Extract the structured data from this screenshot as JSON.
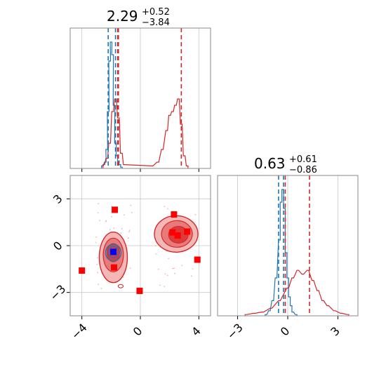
{
  "colors": {
    "blue": "#1f77b4",
    "red": "#d62728",
    "marker_red": "#ff0000",
    "marker_blue": "#0000ff"
  },
  "chart_data": [
    {
      "type": "histogram",
      "panel": "top-left",
      "title_value": "2.29",
      "title_upper": "+0.52",
      "title_lower": "−3.84",
      "xlim": [
        -4.8,
        4.8
      ],
      "xticks": [
        -4,
        0,
        4
      ],
      "grid": true,
      "vlines": [
        {
          "x": -2.2,
          "color": "blue",
          "style": "dashed"
        },
        {
          "x": -1.7,
          "color": "blue",
          "style": "dashed"
        },
        {
          "x": -1.55,
          "color": "red",
          "style": "dashed"
        },
        {
          "x": -1.5,
          "color": "red",
          "style": "dashed"
        },
        {
          "x": 2.8,
          "color": "red",
          "style": "dashed"
        }
      ],
      "series": [
        {
          "color": "blue",
          "x": [
            -2.6,
            -2.4,
            -2.3,
            -2.2,
            -2.1,
            -2.0,
            -1.9,
            -1.8,
            -1.7,
            -1.6,
            -1.5,
            -1.4,
            -1.3
          ],
          "density": [
            0.02,
            0.05,
            0.15,
            0.45,
            0.85,
            1.0,
            0.9,
            0.5,
            0.2,
            0.1,
            0.06,
            0.03,
            0.01
          ]
        },
        {
          "color": "red",
          "x": [
            -2.5,
            -2.3,
            -2.1,
            -1.9,
            -1.7,
            -1.5,
            -1.3,
            -1.1,
            0.8,
            1.2,
            1.5,
            1.8,
            2.0,
            2.2,
            2.4,
            2.6,
            2.8,
            3.0,
            3.2
          ],
          "density": [
            0.03,
            0.08,
            0.2,
            0.45,
            0.55,
            0.4,
            0.12,
            0.03,
            0.02,
            0.05,
            0.15,
            0.3,
            0.42,
            0.45,
            0.5,
            0.55,
            0.35,
            0.1,
            0.02
          ]
        }
      ]
    },
    {
      "type": "contour",
      "panel": "bottom-left",
      "xlim": [
        -4.8,
        4.8
      ],
      "ylim": [
        -4.5,
        4.5
      ],
      "xticks": [
        -4,
        0,
        4
      ],
      "yticks": [
        -3,
        0,
        3
      ],
      "grid": true,
      "markers_red": [
        [
          -1.75,
          2.3
        ],
        [
          2.3,
          2.0
        ],
        [
          3.2,
          0.9
        ],
        [
          2.2,
          0.85
        ],
        [
          2.55,
          0.65
        ],
        [
          -1.8,
          -1.4
        ],
        [
          -4.0,
          -1.6
        ],
        [
          3.9,
          -0.9
        ],
        [
          -0.05,
          -2.9
        ]
      ],
      "markers_blue": [
        [
          -1.85,
          -0.4
        ]
      ]
    },
    {
      "type": "histogram",
      "panel": "bottom-right",
      "title_value": "0.63",
      "title_upper": "+0.61",
      "title_lower": "−0.86",
      "xlim": [
        -4.2,
        4.2
      ],
      "xticks": [
        -3,
        0,
        3
      ],
      "grid": true,
      "vlines": [
        {
          "x": -0.55,
          "color": "blue",
          "style": "dashed"
        },
        {
          "x": -0.25,
          "color": "blue",
          "style": "dashed"
        },
        {
          "x": -0.15,
          "color": "red",
          "style": "dashed"
        },
        {
          "x": 1.3,
          "color": "red",
          "style": "dashed"
        }
      ],
      "series": [
        {
          "color": "blue",
          "x": [
            -1.3,
            -1.1,
            -0.9,
            -0.7,
            -0.5,
            -0.4,
            -0.3,
            -0.2,
            -0.1,
            0.0,
            0.1,
            0.2,
            0.3,
            0.5
          ],
          "density": [
            0.01,
            0.04,
            0.12,
            0.3,
            0.6,
            0.9,
            1.0,
            0.85,
            0.5,
            0.3,
            0.15,
            0.08,
            0.03,
            0.01
          ]
        },
        {
          "color": "red",
          "x": [
            -2.5,
            -2.0,
            -1.5,
            -1.0,
            -0.5,
            0.0,
            0.3,
            0.6,
            0.9,
            1.2,
            1.5,
            1.8,
            2.1,
            2.4,
            2.8,
            3.2,
            3.6
          ],
          "density": [
            0.01,
            0.02,
            0.03,
            0.06,
            0.12,
            0.22,
            0.3,
            0.36,
            0.33,
            0.36,
            0.28,
            0.2,
            0.12,
            0.08,
            0.04,
            0.02,
            0.01
          ]
        }
      ]
    }
  ]
}
